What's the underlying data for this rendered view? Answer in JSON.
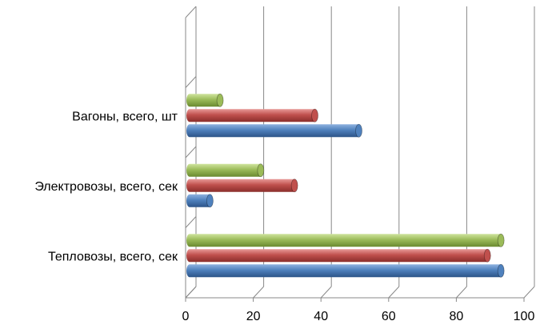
{
  "chart_data": {
    "type": "bar",
    "orientation": "horizontal",
    "style": "3d-cylinder",
    "categories": [
      "Тепловозы, всего, сек",
      "Электровозы, всего, сек",
      "Вагоны, всего, шт"
    ],
    "series": [
      {
        "color": "#4f81bd",
        "values": [
          92,
          6,
          50
        ]
      },
      {
        "color": "#c0504d",
        "values": [
          88,
          31,
          37
        ]
      },
      {
        "color": "#9bbb59",
        "values": [
          92,
          21,
          9
        ]
      }
    ],
    "xlim": [
      0,
      100
    ],
    "xticks": [
      "0",
      "20",
      "40",
      "60",
      "80",
      "100"
    ],
    "grid": true,
    "legend": "none",
    "title": "",
    "xlabel": "",
    "ylabel": ""
  }
}
